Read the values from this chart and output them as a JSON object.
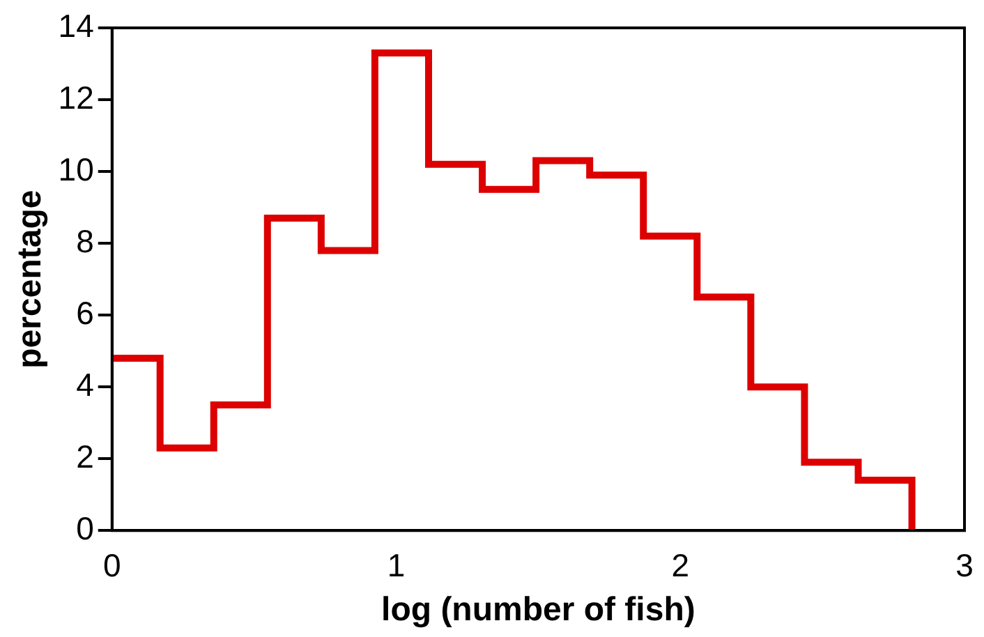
{
  "chart_data": {
    "type": "histogram",
    "xlabel": "log (number of fish)",
    "ylabel": "percentage",
    "bins": [
      0,
      0.169,
      0.358,
      0.547,
      0.736,
      0.925,
      1.114,
      1.303,
      1.492,
      1.681,
      1.87,
      2.059,
      2.248,
      2.437,
      2.626,
      2.815
    ],
    "values": [
      4.8,
      2.3,
      3.5,
      8.7,
      7.8,
      13.3,
      10.2,
      9.5,
      10.3,
      9.9,
      8.2,
      6.5,
      4.0,
      1.9,
      1.4
    ],
    "color": "#dd0000",
    "xlim": [
      0,
      3
    ],
    "xticks": [
      0,
      1,
      2,
      3
    ],
    "ylim": [
      0,
      14
    ],
    "yticks": [
      0,
      2,
      4,
      6,
      8,
      10,
      12,
      14
    ],
    "grid": false,
    "legend": false
  }
}
